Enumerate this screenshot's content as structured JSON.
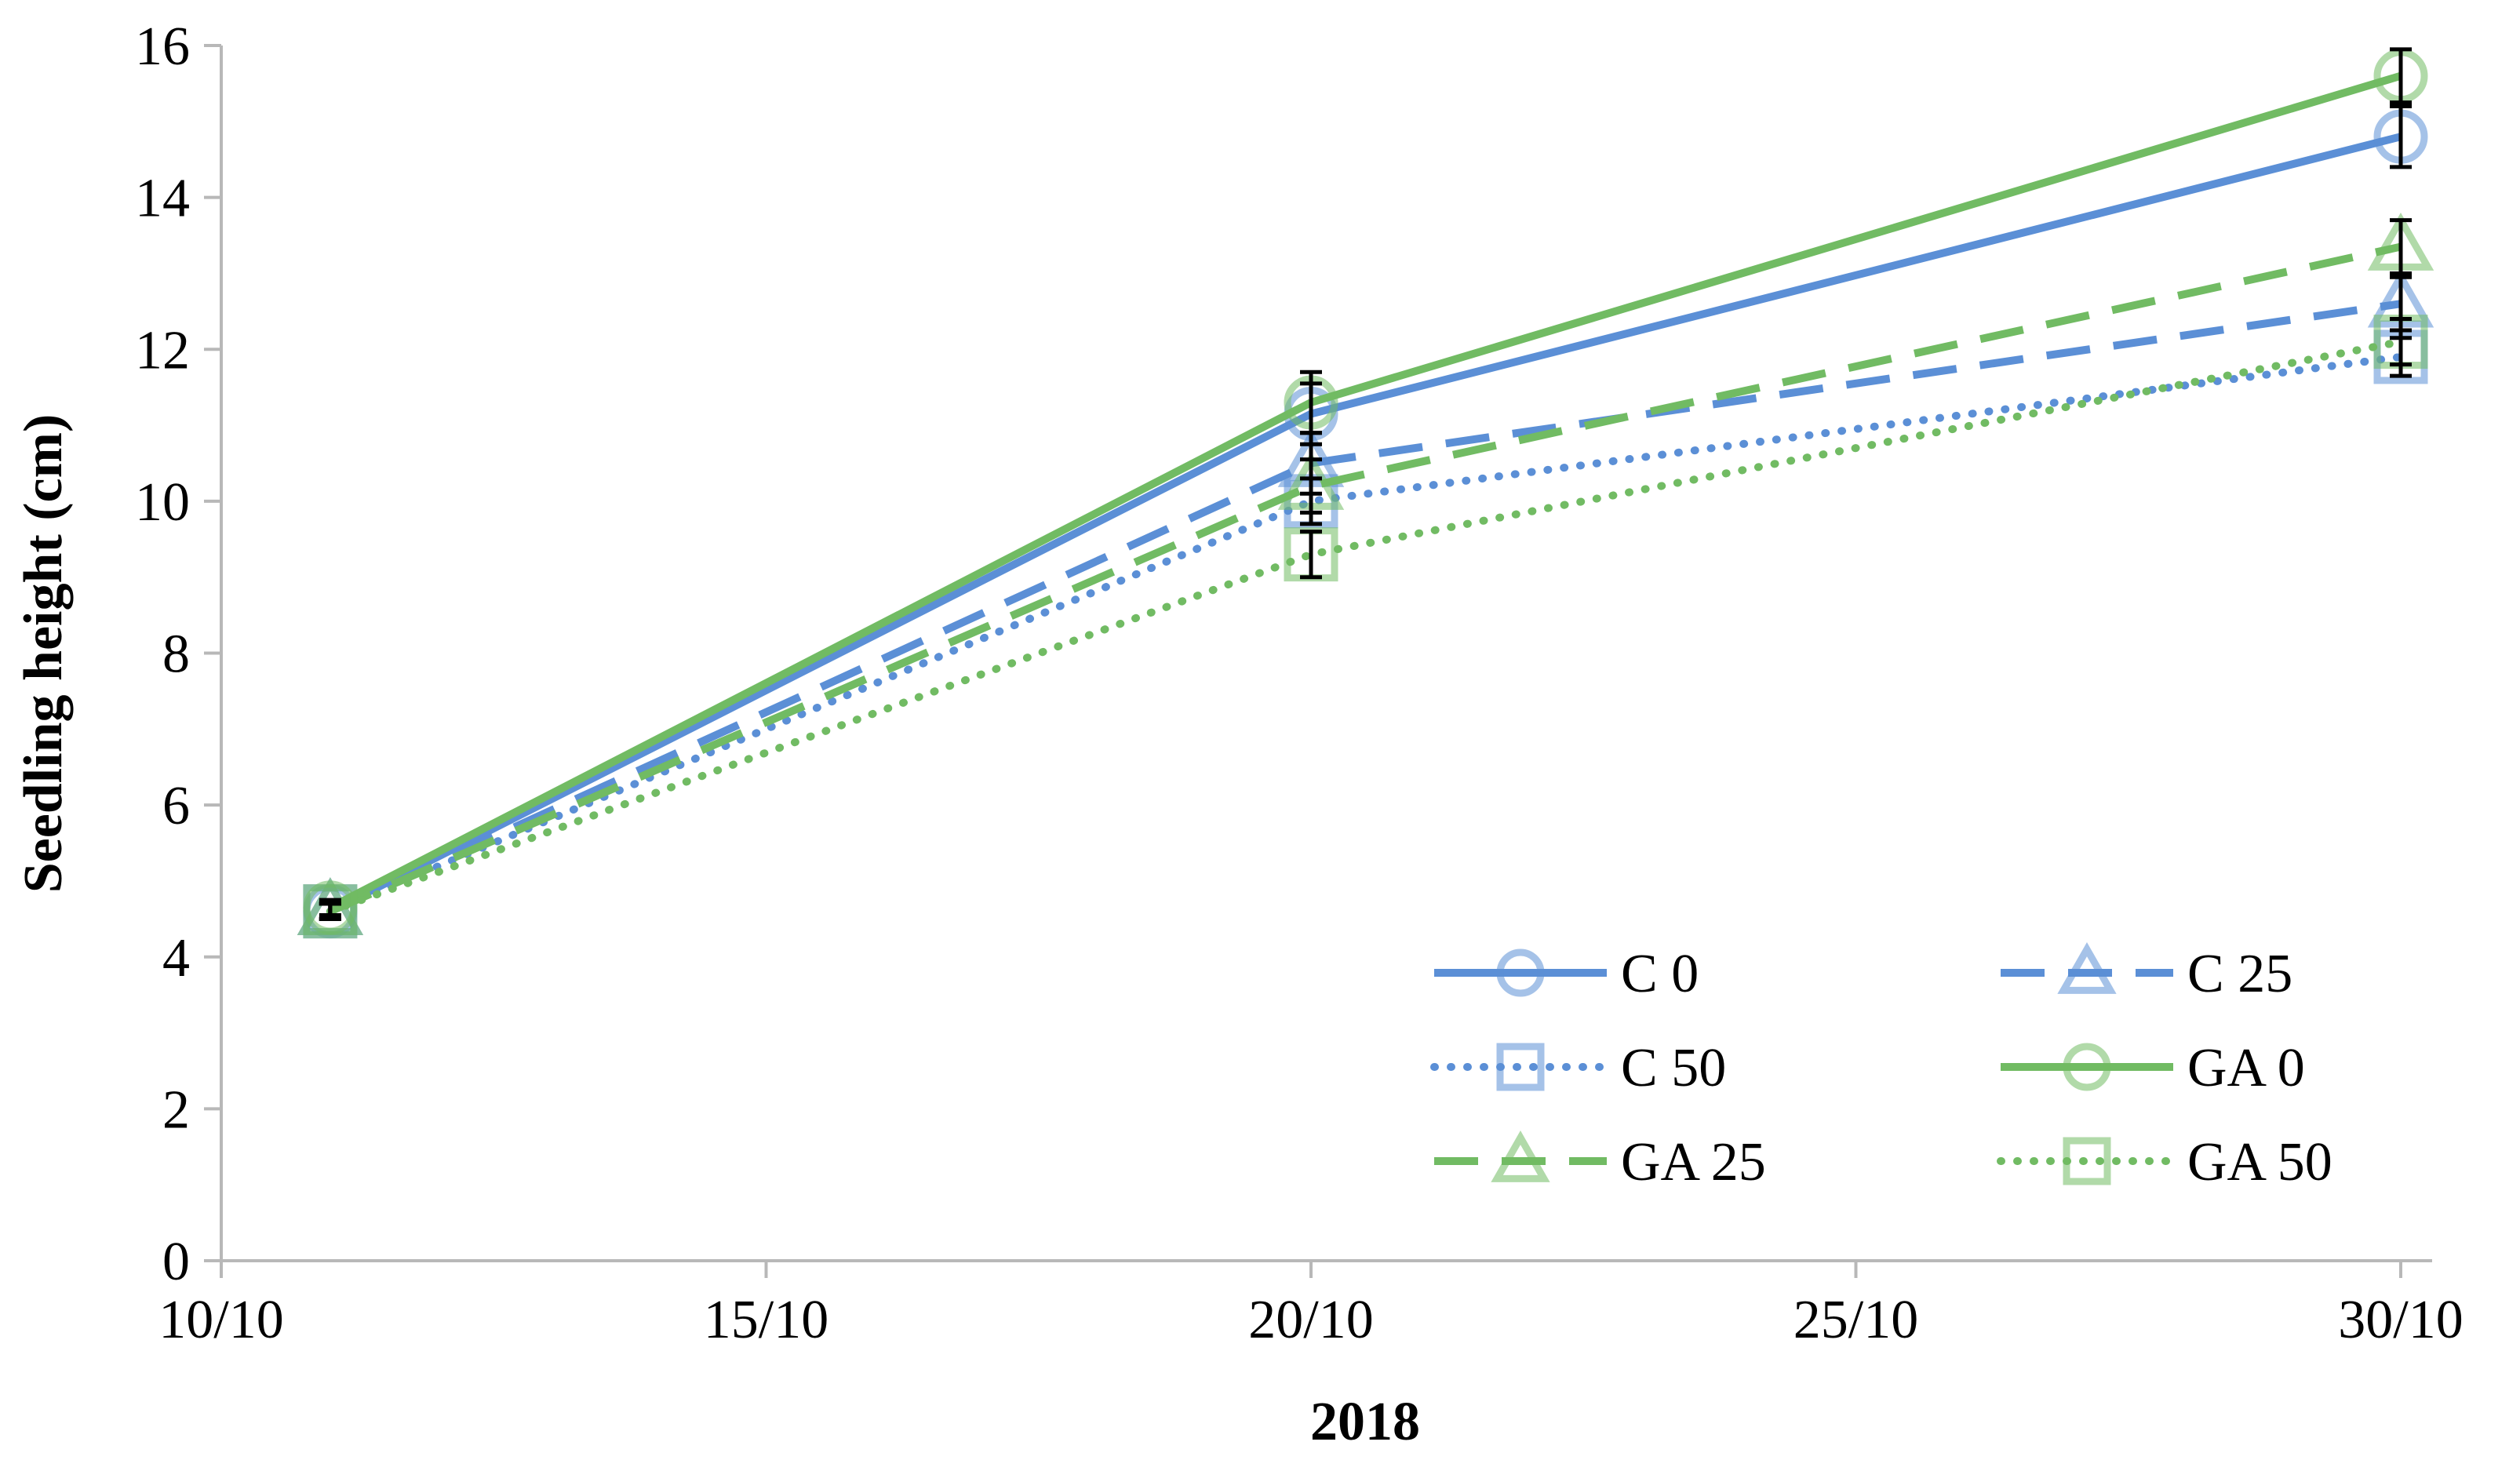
{
  "chart_data": {
    "type": "line",
    "title": "",
    "xlabel": "2018",
    "ylabel": "Seedling height (cm)",
    "x_ticks": [
      "10/10",
      "15/10",
      "20/10",
      "25/10",
      "30/10"
    ],
    "x_tick_days": [
      10,
      15,
      20,
      25,
      30
    ],
    "xlim_days": [
      10,
      30
    ],
    "y_ticks": [
      "0",
      "2",
      "4",
      "6",
      "8",
      "10",
      "12",
      "14",
      "16"
    ],
    "ylim": [
      0,
      16
    ],
    "grid": false,
    "legend_position": "bottom-right",
    "x_days": [
      11,
      20,
      30
    ],
    "x_dates": [
      "11/10",
      "20/10",
      "30/10"
    ],
    "series": [
      {
        "name": "C 0",
        "color": "#5b8fd6",
        "dash": "solid",
        "marker": "circle",
        "values": [
          4.6,
          11.15,
          14.8
        ],
        "errors": [
          0.1,
          0.4,
          0.4
        ]
      },
      {
        "name": "C 25",
        "color": "#5b8fd6",
        "dash": "dashed",
        "marker": "triangle",
        "values": [
          4.6,
          10.5,
          12.6
        ],
        "errors": [
          0.1,
          0.4,
          0.35
        ]
      },
      {
        "name": "C 50",
        "color": "#5b8fd6",
        "dash": "dotted",
        "marker": "square",
        "values": [
          4.6,
          10.0,
          11.9
        ],
        "errors": [
          0.1,
          0.3,
          0.25
        ]
      },
      {
        "name": "GA 0",
        "color": "#71bb63",
        "dash": "solid",
        "marker": "circle",
        "values": [
          4.65,
          11.3,
          15.6
        ],
        "errors": [
          0.1,
          0.4,
          0.35
        ]
      },
      {
        "name": "GA 25",
        "color": "#71bb63",
        "dash": "dashed",
        "marker": "triangle",
        "values": [
          4.6,
          10.2,
          13.35
        ],
        "errors": [
          0.1,
          0.35,
          0.35
        ]
      },
      {
        "name": "GA 50",
        "color": "#71bb63",
        "dash": "dotted",
        "marker": "square",
        "values": [
          4.6,
          9.3,
          12.1
        ],
        "errors": [
          0.1,
          0.3,
          0.3
        ]
      }
    ]
  }
}
